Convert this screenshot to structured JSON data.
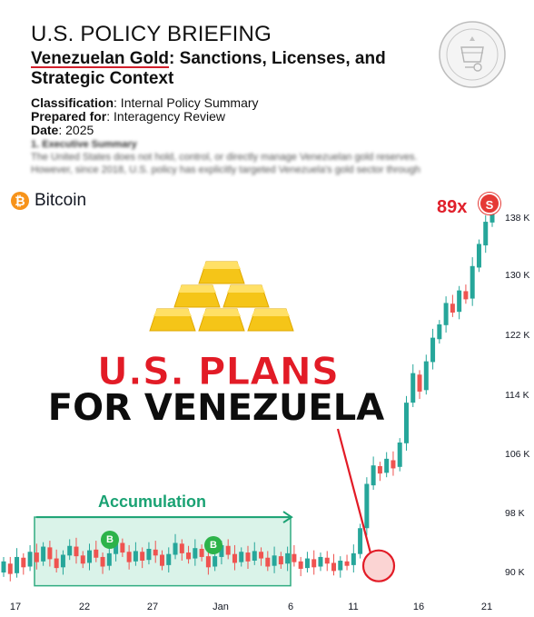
{
  "document": {
    "title": "U.S. POLICY BRIEFING",
    "subtitle_highlight": "Venezuelan Gold",
    "subtitle_rest": ": Sanctions, Licenses, and Strategic Context",
    "meta": [
      {
        "label": "Classification",
        "value": ": Internal Policy Summary"
      },
      {
        "label": "Prepared for",
        "value": ": Interagency Review"
      },
      {
        "label": "Date",
        "value": ": 2025"
      }
    ],
    "blurred_heading": "1. Executive Summary",
    "blurred_line1": "The United States does not hold, control, or directly manage Venezuelan gold reserves.",
    "blurred_line2": "However, since 2018, U.S. policy has explicitly targeted Venezuela's gold sector through",
    "seal_icon": "treasury-seal-icon"
  },
  "chart": {
    "symbol": "Bitcoin",
    "symbol_icon": "bitcoin-icon",
    "multiplier": "89x",
    "sell_badge": "S",
    "buy_badge": "B",
    "headline_line1": "U.S. PLANS",
    "headline_line2": "FOR VENEZUELA",
    "accumulation_label": "Accumulation",
    "colors": {
      "up": "#26a69a",
      "down": "#ef5350",
      "accent_red": "#e21b26",
      "accum_green": "#1aa273",
      "gold": "#f5c518"
    }
  },
  "chart_data": {
    "type": "candlestick",
    "x_ticks": [
      "17",
      "22",
      "27",
      "Jan",
      "6",
      "11",
      "16",
      "21"
    ],
    "y_ticks": [
      "138 K",
      "130 K",
      "122 K",
      "114 K",
      "106 K",
      "98 K",
      "90 K"
    ],
    "ylim": [
      88,
      140
    ],
    "series": [
      {
        "values": [
          [
            90,
            91.5
          ],
          [
            91.2,
            89.8
          ],
          [
            89.9,
            92.1
          ],
          [
            92,
            90.7
          ],
          [
            90.8,
            92.8
          ],
          [
            92.7,
            91.4
          ],
          [
            91.5,
            93.5
          ],
          [
            93.4,
            91.8
          ],
          [
            91.9,
            90.6
          ],
          [
            90.7,
            92.4
          ],
          [
            92.3,
            93.6
          ],
          [
            93.5,
            92.2
          ],
          [
            92.3,
            91.2
          ],
          [
            91.3,
            93
          ],
          [
            93.1,
            92
          ],
          [
            92.1,
            90.8
          ],
          [
            90.9,
            92.6
          ],
          [
            92.5,
            94.1
          ],
          [
            94,
            92.7
          ],
          [
            92.8,
            91.4
          ],
          [
            91.5,
            92.9
          ],
          [
            92.8,
            91.6
          ],
          [
            91.7,
            93.2
          ],
          [
            93.1,
            92.3
          ],
          [
            92.4,
            90.9
          ],
          [
            91,
            92.5
          ],
          [
            92.4,
            94
          ],
          [
            93.9,
            92.6
          ],
          [
            92.7,
            91.8
          ],
          [
            91.9,
            93.3
          ],
          [
            93.2,
            92.1
          ],
          [
            92.2,
            90.7
          ],
          [
            90.8,
            92.2
          ],
          [
            92.1,
            93.7
          ],
          [
            93.6,
            92.4
          ],
          [
            92.5,
            91.3
          ],
          [
            91.4,
            92.8
          ],
          [
            92.7,
            91.5
          ],
          [
            91.6,
            92.9
          ],
          [
            92.8,
            91.9
          ],
          [
            92,
            90.8
          ],
          [
            90.9,
            92.3
          ],
          [
            92.2,
            91.1
          ],
          [
            91.2,
            92.6
          ],
          [
            92.5,
            91.4
          ],
          [
            91.5,
            90.5
          ],
          [
            90.6,
            91.9
          ],
          [
            91.8,
            90.7
          ],
          [
            90.8,
            92.1
          ],
          [
            92,
            91.2
          ],
          [
            91.3,
            90.2
          ],
          [
            90.3,
            91.6
          ],
          [
            91.5,
            90.9
          ],
          [
            91,
            92.6
          ],
          [
            92.5,
            96
          ],
          [
            96,
            102
          ],
          [
            101.8,
            104.5
          ],
          [
            104.4,
            103.4
          ],
          [
            103.5,
            105.4
          ],
          [
            105.2,
            104.1
          ],
          [
            104.3,
            107.6
          ],
          [
            107.5,
            113
          ],
          [
            113,
            117
          ],
          [
            116.8,
            114.5
          ],
          [
            114.7,
            118.6
          ],
          [
            118.5,
            121.8
          ],
          [
            121.6,
            123.6
          ],
          [
            123.5,
            126.5
          ],
          [
            126.4,
            125.2
          ],
          [
            125.3,
            128.2
          ],
          [
            128.1,
            127
          ],
          [
            127.1,
            131.5
          ],
          [
            131.3,
            134.5
          ],
          [
            134.3,
            137.5
          ],
          [
            137.4,
            139.5
          ]
        ]
      }
    ],
    "annotations": [
      "89x",
      "S",
      "B",
      "B",
      "Accumulation"
    ]
  }
}
